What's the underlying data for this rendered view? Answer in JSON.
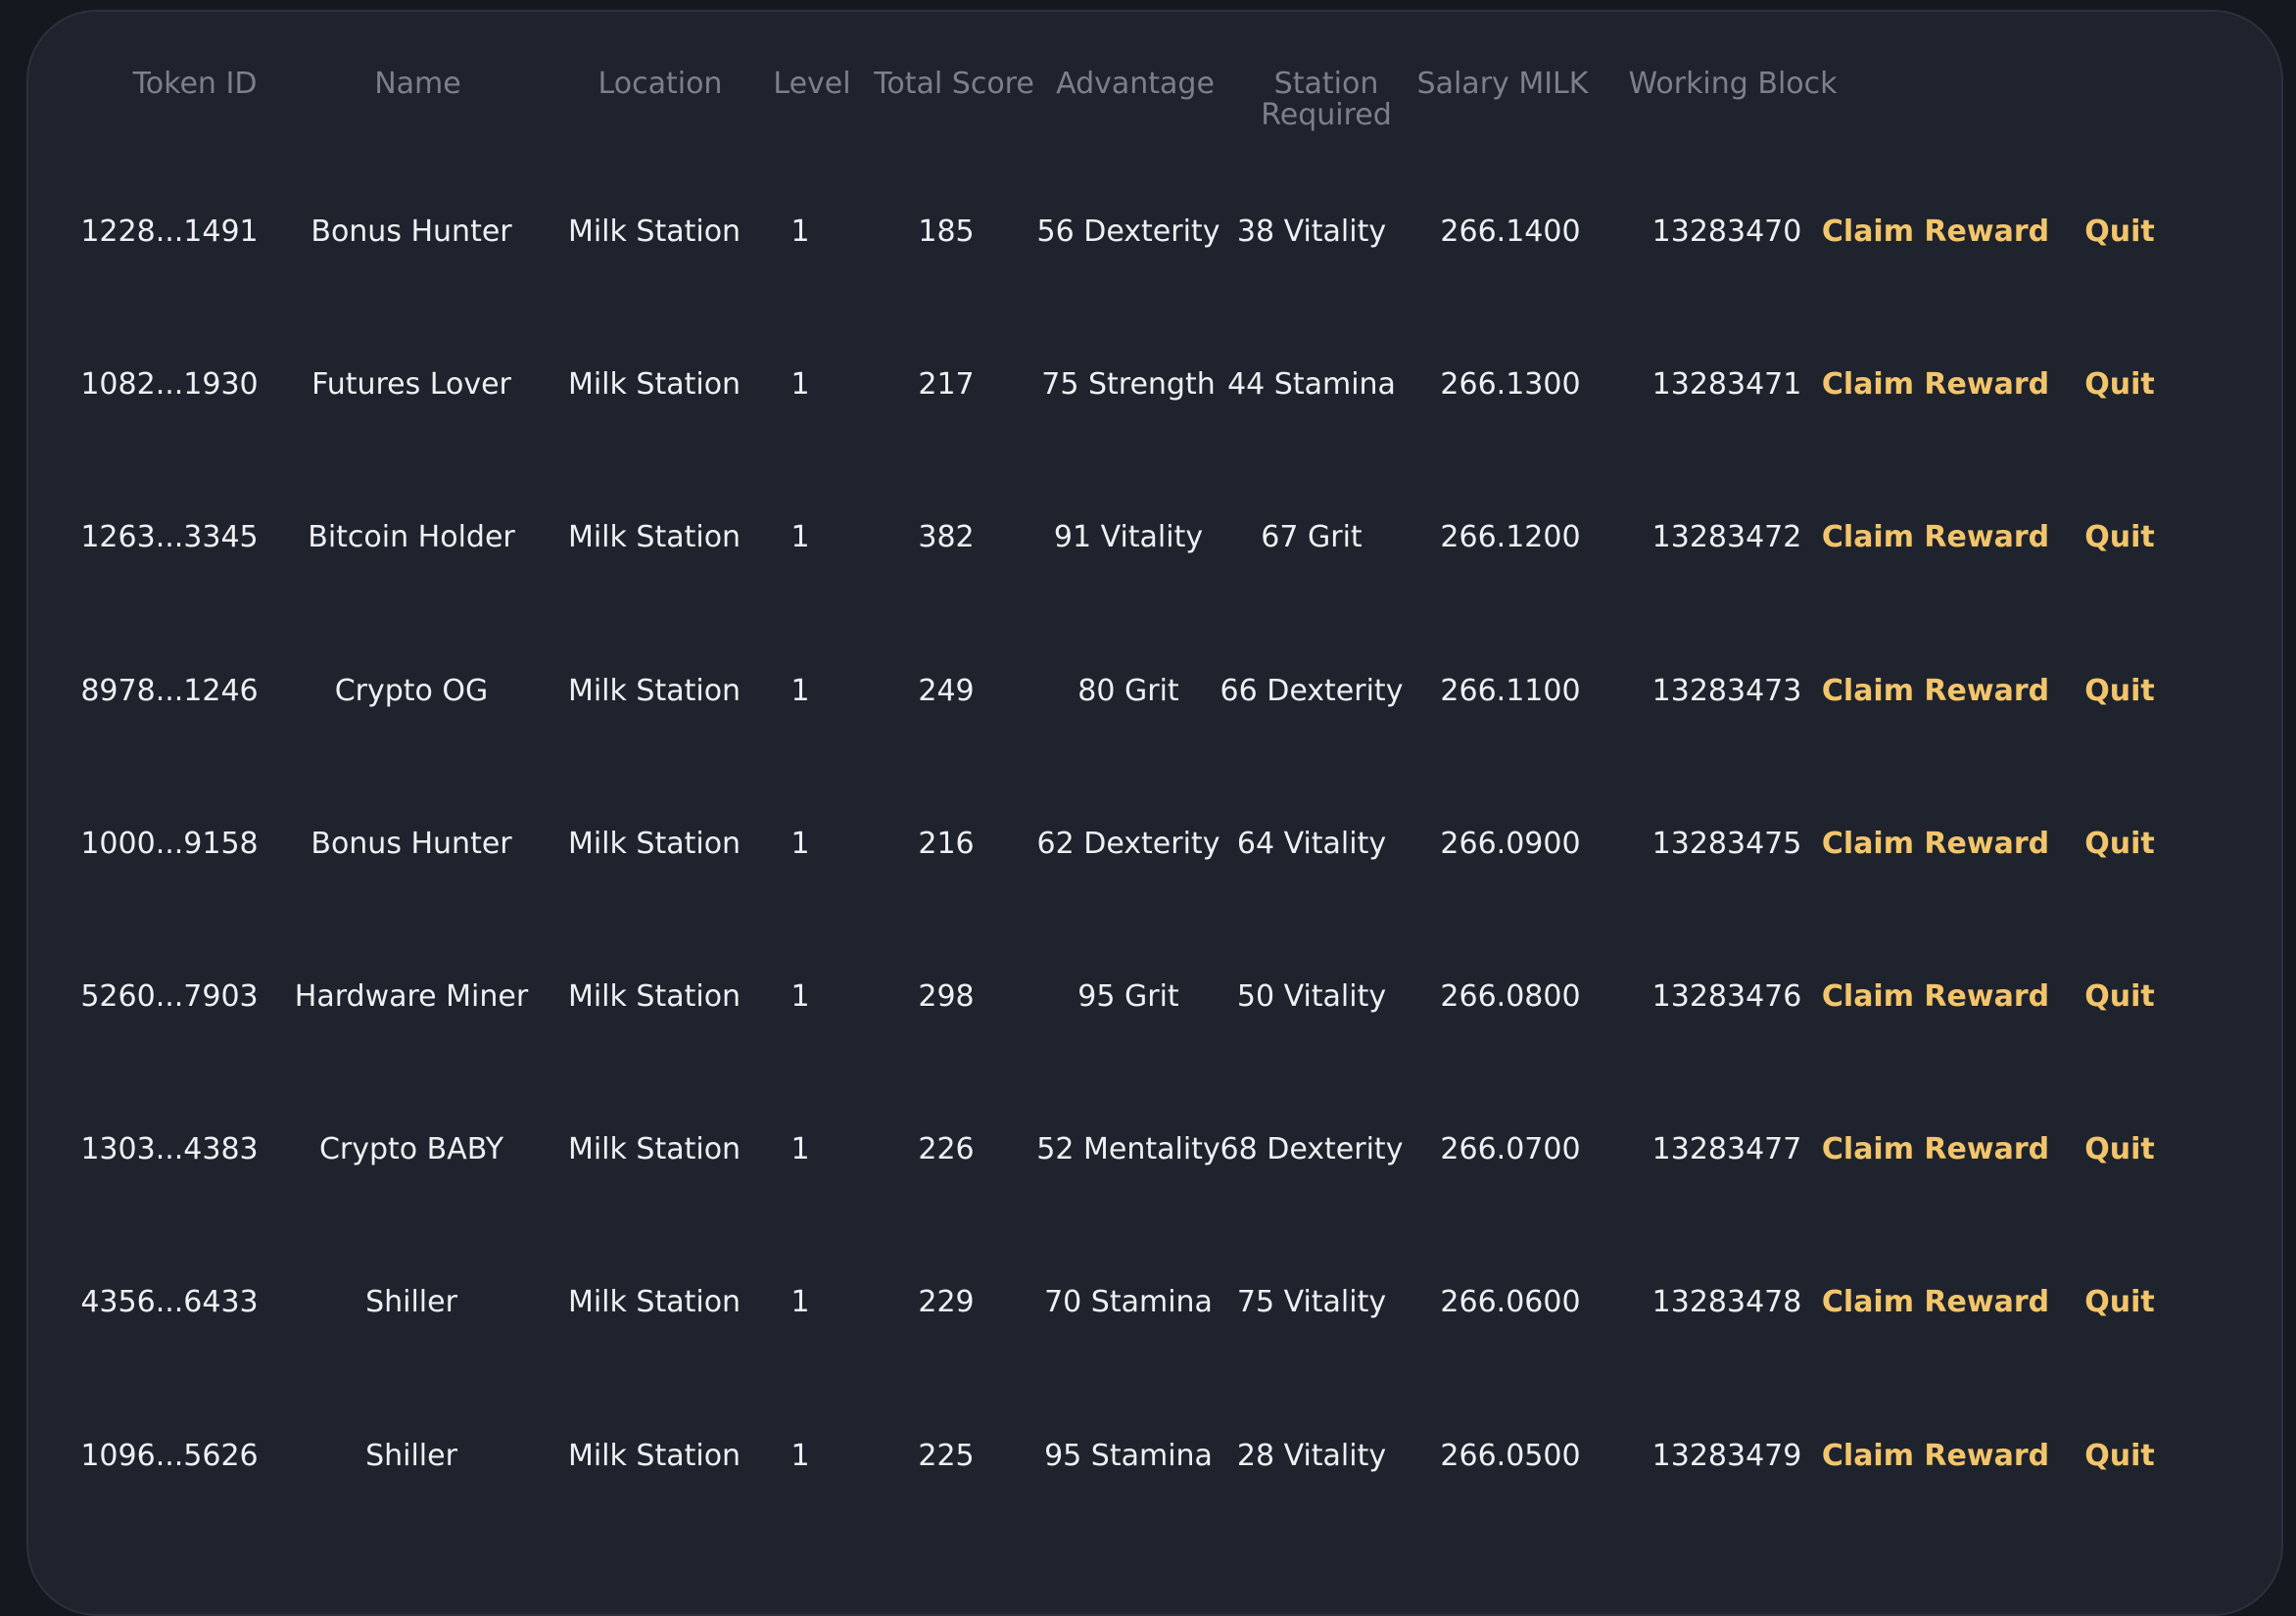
{
  "table": {
    "headers": {
      "token_id": "Token ID",
      "name": "Name",
      "location": "Location",
      "level": "Level",
      "total_score": "Total Score",
      "advantage": "Advantage",
      "station_required": "Station Required",
      "salary_milk": "Salary MILK",
      "working_block": "Working Block"
    },
    "rows": [
      {
        "token_id": "1228...1491",
        "name": "Bonus Hunter",
        "location": "Milk Station",
        "level": "1",
        "total_score": "185",
        "advantage": "56 Dexterity",
        "station_required": "38 Vitality",
        "salary_milk": "266.1400",
        "working_block": "13283470",
        "claim_label": "Claim Reward",
        "quit_label": "Quit"
      },
      {
        "token_id": "1082...1930",
        "name": "Futures Lover",
        "location": "Milk Station",
        "level": "1",
        "total_score": "217",
        "advantage": "75 Strength",
        "station_required": "44 Stamina",
        "salary_milk": "266.1300",
        "working_block": "13283471",
        "claim_label": "Claim Reward",
        "quit_label": "Quit"
      },
      {
        "token_id": "1263...3345",
        "name": "Bitcoin Holder",
        "location": "Milk Station",
        "level": "1",
        "total_score": "382",
        "advantage": "91 Vitality",
        "station_required": "67 Grit",
        "salary_milk": "266.1200",
        "working_block": "13283472",
        "claim_label": "Claim Reward",
        "quit_label": "Quit"
      },
      {
        "token_id": "8978...1246",
        "name": "Crypto OG",
        "location": "Milk Station",
        "level": "1",
        "total_score": "249",
        "advantage": "80 Grit",
        "station_required": "66 Dexterity",
        "salary_milk": "266.1100",
        "working_block": "13283473",
        "claim_label": "Claim Reward",
        "quit_label": "Quit"
      },
      {
        "token_id": "1000...9158",
        "name": "Bonus Hunter",
        "location": "Milk Station",
        "level": "1",
        "total_score": "216",
        "advantage": "62 Dexterity",
        "station_required": "64 Vitality",
        "salary_milk": "266.0900",
        "working_block": "13283475",
        "claim_label": "Claim Reward",
        "quit_label": "Quit"
      },
      {
        "token_id": "5260...7903",
        "name": "Hardware Miner",
        "location": "Milk Station",
        "level": "1",
        "total_score": "298",
        "advantage": "95 Grit",
        "station_required": "50 Vitality",
        "salary_milk": "266.0800",
        "working_block": "13283476",
        "claim_label": "Claim Reward",
        "quit_label": "Quit"
      },
      {
        "token_id": "1303...4383",
        "name": "Crypto BABY",
        "location": "Milk Station",
        "level": "1",
        "total_score": "226",
        "advantage": "52 Mentality",
        "station_required": "68 Dexterity",
        "salary_milk": "266.0700",
        "working_block": "13283477",
        "claim_label": "Claim Reward",
        "quit_label": "Quit"
      },
      {
        "token_id": "4356...6433",
        "name": "Shiller",
        "location": "Milk Station",
        "level": "1",
        "total_score": "229",
        "advantage": "70 Stamina",
        "station_required": "75 Vitality",
        "salary_milk": "266.0600",
        "working_block": "13283478",
        "claim_label": "Claim Reward",
        "quit_label": "Quit"
      },
      {
        "token_id": "1096...5626",
        "name": "Shiller",
        "location": "Milk Station",
        "level": "1",
        "total_score": "225",
        "advantage": "95 Stamina",
        "station_required": "28 Vitality",
        "salary_milk": "266.0500",
        "working_block": "13283479",
        "claim_label": "Claim Reward",
        "quit_label": "Quit"
      }
    ]
  }
}
